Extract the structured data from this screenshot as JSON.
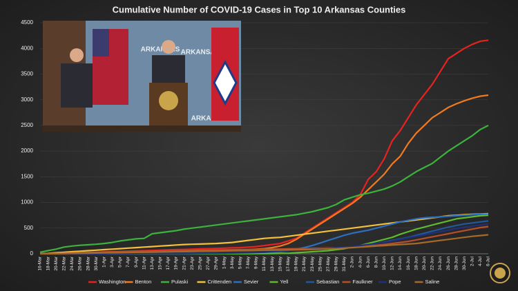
{
  "chart_data": {
    "type": "line",
    "title": "Cumulative Number of COVID-19 Cases in Top 10 Arkansas Counties",
    "categories": [
      "16-Mar",
      "18-Mar",
      "20-Mar",
      "22-Mar",
      "24-Mar",
      "26-Mar",
      "28-Mar",
      "30-Mar",
      "1-Apr",
      "3-Apr",
      "5-Apr",
      "7-Apr",
      "9-Apr",
      "11-Apr",
      "13-Apr",
      "15-Apr",
      "17-Apr",
      "19-Apr",
      "21-Apr",
      "23-Apr",
      "25-Apr",
      "27-Apr",
      "29-Apr",
      "1-May",
      "3-May",
      "5-May",
      "7-May",
      "9-May",
      "11-May",
      "13-May",
      "15-May",
      "17-May",
      "19-May",
      "21-May",
      "23-May",
      "25-May",
      "27-May",
      "29-May",
      "31-May",
      "2-Jun",
      "4-Jun",
      "6-Jun",
      "8-Jun",
      "10-Jun",
      "12-Jun",
      "14-Jun",
      "16-Jun",
      "18-Jun",
      "20-Jun",
      "22-Jun",
      "24-Jun",
      "26-Jun",
      "28-Jun",
      "30-Jun",
      "2-Jul",
      "4-Jul",
      "6-Jul"
    ],
    "series": [
      {
        "name": "Washington",
        "color": "#e8231f",
        "values": [
          2,
          5,
          8,
          10,
          15,
          20,
          25,
          30,
          35,
          40,
          45,
          50,
          55,
          60,
          65,
          70,
          75,
          80,
          85,
          90,
          95,
          100,
          105,
          110,
          115,
          120,
          130,
          140,
          160,
          180,
          200,
          250,
          300,
          400,
          500,
          600,
          700,
          800,
          900,
          1000,
          1150,
          1450,
          1600,
          1850,
          2200,
          2400,
          2650,
          2900,
          3100,
          3300,
          3550,
          3800,
          3900,
          4000,
          4080,
          4140,
          4160
        ]
      },
      {
        "name": "Benton",
        "color": "#f07b20",
        "values": [
          1,
          3,
          5,
          8,
          10,
          12,
          15,
          18,
          20,
          22,
          25,
          28,
          30,
          33,
          35,
          38,
          40,
          42,
          45,
          48,
          50,
          55,
          60,
          65,
          70,
          75,
          80,
          90,
          100,
          120,
          150,
          200,
          280,
          380,
          480,
          580,
          680,
          780,
          880,
          980,
          1100,
          1250,
          1400,
          1550,
          1750,
          1900,
          2150,
          2350,
          2500,
          2650,
          2750,
          2850,
          2920,
          2980,
          3030,
          3070,
          3090
        ]
      },
      {
        "name": "Pulaski",
        "color": "#3cb33c",
        "values": [
          30,
          60,
          90,
          130,
          150,
          165,
          175,
          185,
          200,
          220,
          250,
          270,
          290,
          300,
          390,
          410,
          430,
          450,
          480,
          500,
          520,
          540,
          560,
          580,
          600,
          620,
          640,
          660,
          680,
          700,
          720,
          740,
          760,
          790,
          820,
          860,
          900,
          960,
          1050,
          1100,
          1150,
          1180,
          1220,
          1260,
          1320,
          1400,
          1500,
          1600,
          1680,
          1760,
          1880,
          2000,
          2100,
          2200,
          2300,
          2420,
          2500
        ]
      },
      {
        "name": "Crittenden",
        "color": "#f3c13a",
        "values": [
          5,
          10,
          20,
          30,
          40,
          50,
          60,
          70,
          80,
          90,
          100,
          110,
          120,
          130,
          140,
          150,
          160,
          170,
          180,
          185,
          190,
          195,
          200,
          210,
          220,
          240,
          260,
          280,
          300,
          310,
          320,
          340,
          360,
          380,
          400,
          420,
          440,
          460,
          480,
          500,
          520,
          540,
          560,
          580,
          600,
          620,
          640,
          660,
          680,
          700,
          720,
          740,
          750,
          760,
          770,
          775,
          780
        ]
      },
      {
        "name": "Sevier",
        "color": "#2c6fc2",
        "values": [
          0,
          0,
          0,
          1,
          1,
          1,
          2,
          2,
          2,
          3,
          3,
          3,
          4,
          4,
          5,
          5,
          5,
          6,
          6,
          7,
          7,
          8,
          8,
          9,
          10,
          10,
          12,
          15,
          20,
          30,
          40,
          60,
          90,
          120,
          160,
          210,
          260,
          310,
          360,
          400,
          430,
          460,
          500,
          540,
          580,
          620,
          650,
          680,
          700,
          710,
          720,
          730,
          740,
          750,
          760,
          770,
          770
        ]
      },
      {
        "name": "Yell",
        "color": "#5dbb2e",
        "values": [
          0,
          0,
          0,
          0,
          0,
          0,
          0,
          0,
          0,
          0,
          0,
          0,
          0,
          0,
          0,
          0,
          0,
          0,
          0,
          0,
          0,
          0,
          0,
          1,
          1,
          2,
          2,
          3,
          3,
          5,
          8,
          10,
          20,
          30,
          40,
          50,
          60,
          80,
          100,
          130,
          160,
          200,
          240,
          280,
          320,
          380,
          430,
          480,
          520,
          560,
          600,
          640,
          680,
          700,
          720,
          740,
          750
        ]
      },
      {
        "name": "Sebastian",
        "color": "#1f5a9a",
        "values": [
          1,
          2,
          4,
          6,
          8,
          10,
          12,
          15,
          18,
          20,
          22,
          25,
          28,
          30,
          33,
          36,
          40,
          42,
          45,
          48,
          50,
          52,
          55,
          58,
          60,
          62,
          65,
          68,
          70,
          72,
          75,
          78,
          80,
          85,
          90,
          95,
          100,
          110,
          120,
          130,
          150,
          170,
          200,
          230,
          260,
          290,
          320,
          360,
          400,
          440,
          480,
          520,
          550,
          580,
          600,
          620,
          640
        ]
      },
      {
        "name": "Faulkner",
        "color": "#b5502a",
        "values": [
          2,
          4,
          6,
          10,
          15,
          20,
          25,
          30,
          35,
          40,
          42,
          45,
          48,
          50,
          52,
          55,
          58,
          60,
          62,
          65,
          68,
          70,
          72,
          75,
          78,
          80,
          82,
          85,
          88,
          90,
          92,
          95,
          98,
          100,
          105,
          110,
          115,
          120,
          125,
          130,
          140,
          150,
          165,
          180,
          200,
          220,
          240,
          270,
          300,
          330,
          360,
          390,
          420,
          450,
          480,
          510,
          530
        ]
      },
      {
        "name": "Pope",
        "color": "#20307a",
        "values": [
          0,
          0,
          0,
          1,
          1,
          1,
          2,
          2,
          2,
          3,
          3,
          3,
          4,
          4,
          5,
          5,
          5,
          6,
          6,
          7,
          8,
          9,
          10,
          12,
          15,
          18,
          20,
          25,
          30,
          40,
          50,
          60,
          70,
          80,
          90,
          100,
          110,
          120,
          130,
          140,
          160,
          180,
          200,
          220,
          250,
          280,
          310,
          340,
          370,
          400,
          430,
          460,
          490,
          520,
          540,
          560,
          580
        ]
      },
      {
        "name": "Saline",
        "color": "#a66a2a",
        "values": [
          1,
          2,
          3,
          5,
          8,
          10,
          12,
          15,
          18,
          20,
          22,
          25,
          28,
          30,
          32,
          35,
          38,
          40,
          42,
          45,
          48,
          50,
          52,
          55,
          58,
          60,
          62,
          65,
          68,
          70,
          72,
          75,
          78,
          80,
          85,
          90,
          95,
          100,
          110,
          120,
          130,
          140,
          150,
          160,
          170,
          180,
          190,
          200,
          220,
          240,
          260,
          280,
          300,
          320,
          340,
          355,
          370
        ]
      }
    ],
    "ylim": [
      0,
      4500
    ],
    "yticks": [
      0,
      500,
      1000,
      1500,
      2000,
      2500,
      3000,
      3500,
      4000,
      4500
    ],
    "grid": true
  },
  "inset": {
    "backdrop_text": "ARKANSAS"
  }
}
